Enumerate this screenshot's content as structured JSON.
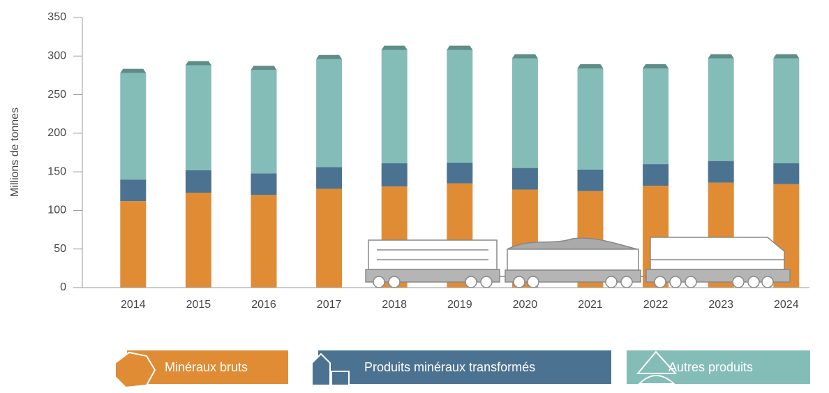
{
  "chart_data": {
    "type": "stacked-bar",
    "y_label": "Millions de tonnes",
    "categories": [
      "2014",
      "2015",
      "2016",
      "2017",
      "2018",
      "2019",
      "2020",
      "2021",
      "2022",
      "2023",
      "2024"
    ],
    "series": [
      {
        "name": "Minéraux bruts",
        "color": "#e08c35",
        "values": [
          112,
          123,
          120,
          128,
          131,
          135,
          127,
          125,
          132,
          136,
          134
        ]
      },
      {
        "name": "Produits minéraux transformés",
        "color": "#4c7291",
        "values": [
          28,
          29,
          28,
          28,
          30,
          27,
          28,
          28,
          28,
          28,
          27
        ]
      },
      {
        "name": "Autres produits",
        "color": "#84bcb8",
        "values": [
          138,
          136,
          134,
          140,
          147,
          146,
          142,
          131,
          124,
          133,
          136
        ]
      }
    ],
    "ylim": [
      0,
      350
    ],
    "yticks": [
      0,
      50,
      100,
      150,
      200,
      250,
      300,
      350
    ]
  }
}
